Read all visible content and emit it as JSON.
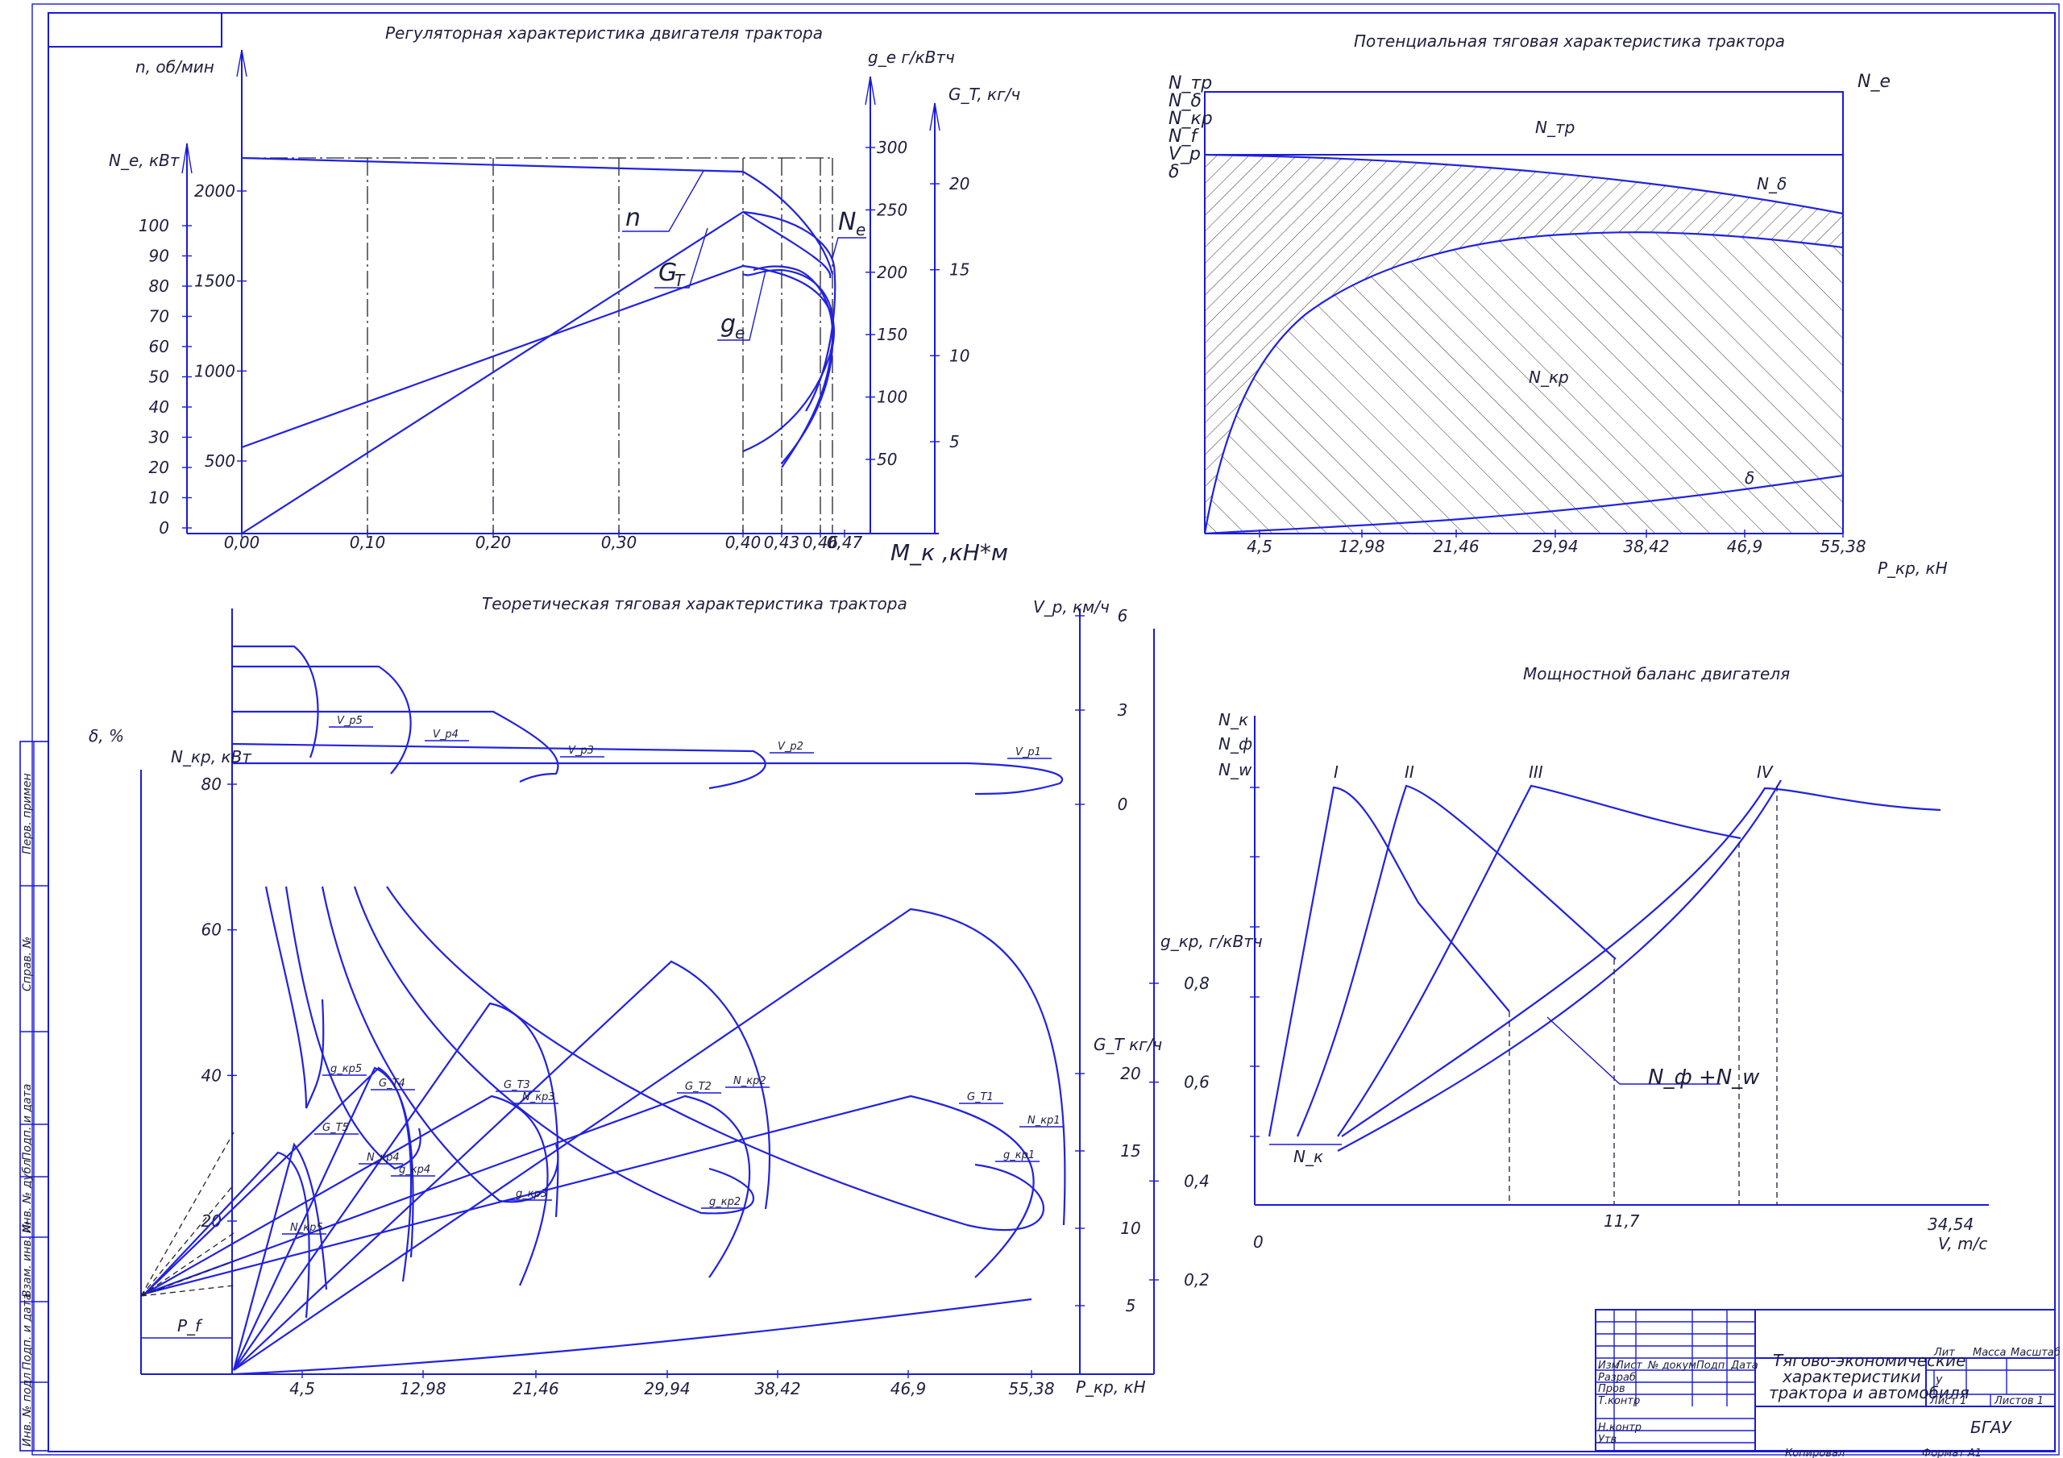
{
  "chart_data": [
    {
      "type": "line",
      "title": "Регуляторная характеристика двигателя трактора",
      "xlabel": "M_к ,кН*м",
      "x_ticks": [
        "0,00",
        "0,10",
        "0,20",
        "0,30",
        "0,40",
        "0,43",
        "0,46",
        "0,47"
      ],
      "y_axes": [
        {
          "label": "N_e, кВт",
          "ticks": [
            "0",
            "10",
            "20",
            "30",
            "40",
            "50",
            "60",
            "70",
            "80",
            "90",
            "100"
          ]
        },
        {
          "label": "n, об/мин",
          "ticks": [
            "500",
            "1000",
            "1500",
            "2000"
          ]
        },
        {
          "label": "g_e г/кВтч",
          "ticks": [
            "50",
            "100",
            "150",
            "200",
            "250",
            "300"
          ]
        },
        {
          "label": "G_T, кг/ч",
          "ticks": [
            "5",
            "10",
            "15",
            "20"
          ]
        }
      ],
      "series": [
        {
          "name": "n",
          "x": [
            0,
            0.4,
            0.43,
            0.46,
            0.47
          ],
          "y": [
            2150,
            2080,
            1650,
            1250,
            900
          ]
        },
        {
          "name": "N_e",
          "x": [
            0,
            0.4,
            0.46,
            0.47
          ],
          "y": [
            0,
            92,
            86,
            60
          ]
        },
        {
          "name": "G_T",
          "x": [
            0,
            0.4,
            0.46,
            0.47
          ],
          "y": [
            5,
            18.3,
            16.5,
            12
          ]
        },
        {
          "name": "g_e",
          "x": [
            0.4,
            0.43,
            0.46,
            0.47
          ],
          "y": [
            207,
            200,
            160,
            150
          ]
        }
      ],
      "labels": {
        "n": "n",
        "ne": "N",
        "ne_sub": "e",
        "gt": "G",
        "gt_sub": "T",
        "ge": "g",
        "ge_sub": "e"
      }
    },
    {
      "type": "area",
      "title": "Потенциальная тяговая характеристика трактора",
      "xlabel": "P_кр, кН",
      "x_ticks": [
        "4,5",
        "12,98",
        "21,46",
        "29,94",
        "38,42",
        "46,9",
        "55,38"
      ],
      "left_labels": [
        "N_тр",
        "N_δ",
        "N_кр",
        "N_f",
        "V_р",
        "δ"
      ],
      "right_label": "N_e",
      "region_labels": {
        "ntr": "N_тр",
        "nd": "N_δ",
        "nkr": "N_кр",
        "delta": "δ"
      },
      "series": [
        {
          "name": "N_кр",
          "x": [
            4.5,
            12.98,
            21.46,
            29.94,
            38.42,
            46.9,
            55.38
          ],
          "y": [
            20,
            62,
            78,
            82,
            82,
            78,
            70
          ]
        },
        {
          "name": "δ",
          "x": [
            4.5,
            12.98,
            21.46,
            29.94,
            38.42,
            46.9,
            55.38
          ],
          "y": [
            0.5,
            1.5,
            2.5,
            4,
            6,
            8,
            14
          ]
        }
      ]
    },
    {
      "type": "line",
      "title": "Теоретическая тяговая характеристика трактора",
      "xlabel": "P_кр, кН",
      "x_ticks": [
        "4,5",
        "12,98",
        "21,46",
        "29,94",
        "38,42",
        "46,9",
        "55,38"
      ],
      "y_axes": [
        {
          "label": "N_кр, кВт",
          "ticks": [
            "20",
            "40",
            "60",
            "80"
          ]
        },
        {
          "label": "δ, %",
          "ticks": []
        },
        {
          "label": "V_р, км/ч",
          "ticks": [
            "0",
            "3",
            "6"
          ]
        },
        {
          "label": "g_кр, г/кВтч",
          "ticks": [
            "0,2",
            "0,4",
            "0,6",
            "0,8"
          ]
        },
        {
          "label": "G_T кг/ч",
          "ticks": [
            "5",
            "10",
            "15",
            "20"
          ]
        }
      ],
      "curve_labels": [
        "V_p5",
        "V_p4",
        "V_p3",
        "V_p2",
        "V_p1",
        "G_T5",
        "G_T4",
        "G_T3",
        "G_T2",
        "G_T1",
        "N_кр5",
        "N_кр4",
        "N_кр3",
        "N_кр2",
        "N_кр1",
        "g_кр5",
        "g_кр4",
        "g_кр3",
        "g_кр2",
        "g_кр1"
      ],
      "pf_label": "P_f",
      "series": [
        {
          "name": "N_кр1",
          "x": [
            4.5,
            46.9,
            55.38
          ],
          "y": [
            2,
            37,
            32
          ]
        },
        {
          "name": "N_кр2",
          "x": [
            4.5,
            29.94,
            38.42
          ],
          "y": [
            2,
            36,
            26
          ]
        },
        {
          "name": "N_кр3",
          "x": [
            4.5,
            21.46,
            29.94
          ],
          "y": [
            2,
            35,
            22
          ]
        }
      ]
    },
    {
      "type": "line",
      "title": "Мощностной баланс двигателя",
      "xlabel": "V, m/c",
      "x_ticks": [
        "0",
        "11,7",
        "34,54"
      ],
      "ylabel_lines": [
        "N_к",
        "N_ф",
        "N_w"
      ],
      "gear_labels": [
        "I",
        "II",
        "III",
        "IV"
      ],
      "sum_label": "N_ф +N_w",
      "nk_label": "N_к"
    }
  ],
  "stamp": {
    "title_lines": [
      "Тягово-экономические",
      "характеристики",
      "трактора и автомобиля"
    ],
    "org": "БГАУ",
    "copied": "Копировал",
    "format": "Формат   А1",
    "cols": [
      "Изм",
      "Лист",
      "№ докум",
      "Подп",
      "Дата"
    ],
    "roles": [
      "Разраб",
      "Пров",
      "Т.контр",
      "Н.контр",
      "Утв"
    ],
    "lit": "Лит",
    "mass": "Масса",
    "scale": "Масштаб",
    "lit_val": "У",
    "sheet": "Лист   1",
    "sheets": "Листов   1"
  },
  "side_labels": [
    "Перв. примен",
    "Справ. №",
    "Подп. и дата",
    "Инв. № дубл",
    "Взам. инв. №",
    "Подп. и дата",
    "Инв. № подл"
  ]
}
